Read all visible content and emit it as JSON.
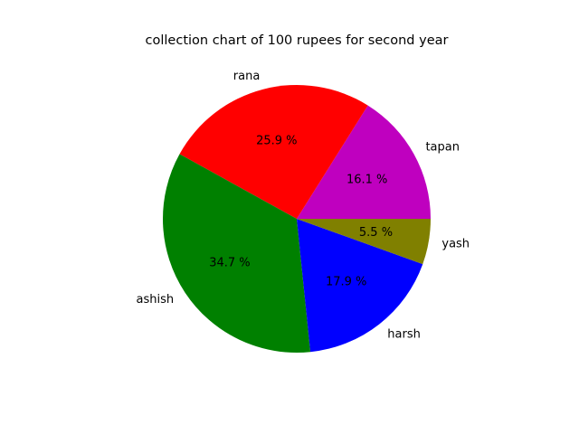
{
  "chart_data": {
    "type": "pie",
    "title": "collection chart of 100 rupees for second year",
    "start_angle_deg": 0,
    "direction": "counterclockwise",
    "slices": [
      {
        "label": "tapan",
        "value": 16.1,
        "pct_text": "16.1 %",
        "color": "#bf00bf"
      },
      {
        "label": "rana",
        "value": 25.9,
        "pct_text": "25.9 %",
        "color": "#ff0000"
      },
      {
        "label": "ashish",
        "value": 34.7,
        "pct_text": "34.7 %",
        "color": "#008000"
      },
      {
        "label": "harsh",
        "value": 17.9,
        "pct_text": "17.9 %",
        "color": "#0000ff"
      },
      {
        "label": "yash",
        "value": 5.5,
        "pct_text": "5.5 %",
        "color": "#808000"
      }
    ]
  }
}
